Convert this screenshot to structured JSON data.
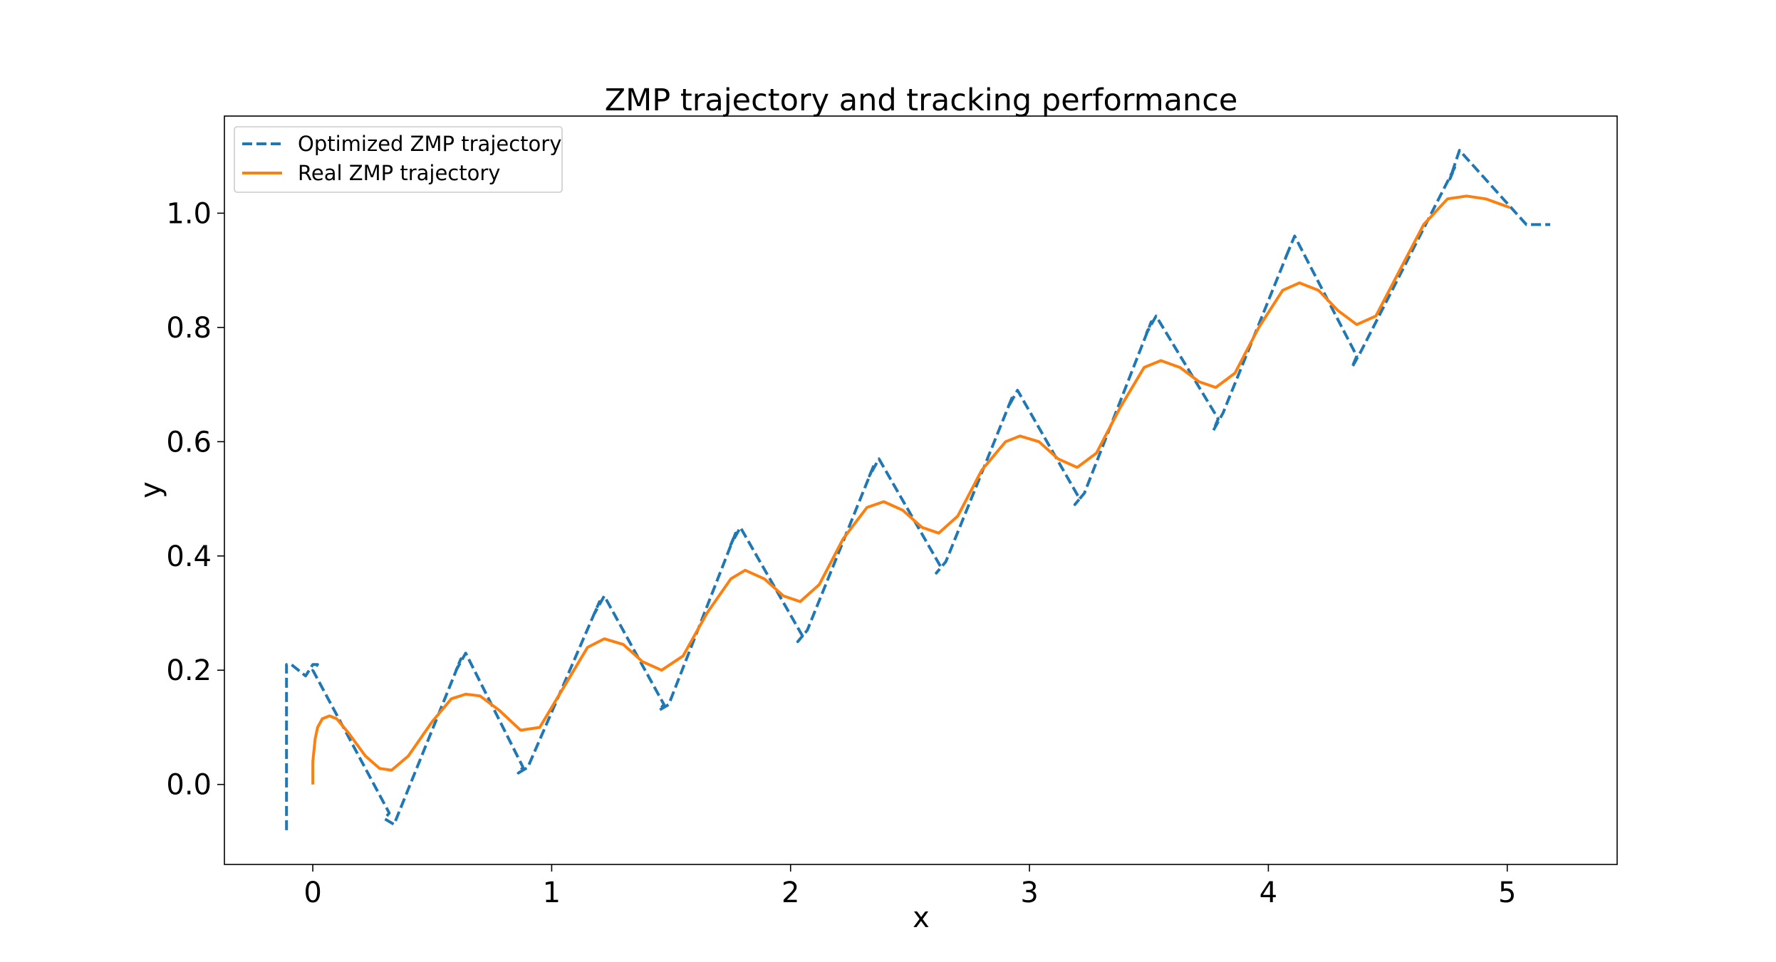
{
  "chart_data": {
    "type": "line",
    "title": "ZMP trajectory and tracking performance",
    "xlabel": "x",
    "ylabel": "y",
    "xlim": [
      -0.37,
      5.46
    ],
    "ylim": [
      -0.14,
      1.17
    ],
    "xticks": [
      0,
      1,
      2,
      3,
      4,
      5
    ],
    "xtick_labels": [
      "0",
      "1",
      "2",
      "3",
      "4",
      "5"
    ],
    "yticks": [
      0.0,
      0.2,
      0.4,
      0.6,
      0.8,
      1.0
    ],
    "ytick_labels": [
      "0.0",
      "0.2",
      "0.4",
      "0.6",
      "0.8",
      "1.0"
    ],
    "grid": false,
    "legend_position": "upper-left",
    "series": [
      {
        "name": "Optimized ZMP trajectory",
        "color": "#1f77b4",
        "style": "dashed",
        "x": [
          -0.11,
          -0.11,
          -0.09,
          -0.03,
          0.0,
          0.02,
          0.0,
          0.32,
          0.3,
          0.34,
          0.62,
          0.6,
          0.64,
          0.88,
          0.86,
          0.9,
          1.2,
          1.18,
          1.22,
          1.47,
          1.45,
          1.49,
          1.77,
          1.75,
          1.79,
          2.05,
          2.03,
          2.07,
          2.35,
          2.33,
          2.37,
          2.63,
          2.61,
          2.65,
          2.93,
          2.91,
          2.95,
          3.21,
          3.19,
          3.23,
          3.51,
          3.49,
          3.53,
          3.79,
          3.77,
          3.81,
          4.09,
          4.07,
          4.11,
          4.37,
          4.35,
          4.39,
          4.78,
          4.76,
          4.8,
          5.08,
          5.18
        ],
        "y": [
          -0.08,
          0.21,
          0.21,
          0.19,
          0.21,
          0.21,
          0.2,
          -0.05,
          -0.06,
          -0.07,
          0.22,
          0.2,
          0.23,
          0.03,
          0.02,
          0.03,
          0.32,
          0.3,
          0.33,
          0.14,
          0.13,
          0.14,
          0.44,
          0.42,
          0.45,
          0.26,
          0.25,
          0.27,
          0.56,
          0.54,
          0.57,
          0.38,
          0.37,
          0.39,
          0.68,
          0.66,
          0.69,
          0.5,
          0.49,
          0.51,
          0.81,
          0.79,
          0.82,
          0.64,
          0.62,
          0.65,
          0.94,
          0.92,
          0.96,
          0.75,
          0.73,
          0.76,
          1.08,
          1.06,
          1.11,
          0.98,
          0.98
        ]
      },
      {
        "name": "Real ZMP trajectory",
        "color": "#ff7f0e",
        "style": "solid",
        "x": [
          0.0,
          0.0,
          0.01,
          0.02,
          0.04,
          0.07,
          0.1,
          0.15,
          0.22,
          0.28,
          0.33,
          0.4,
          0.5,
          0.58,
          0.64,
          0.7,
          0.78,
          0.87,
          0.95,
          1.05,
          1.15,
          1.22,
          1.3,
          1.38,
          1.46,
          1.55,
          1.65,
          1.75,
          1.81,
          1.89,
          1.97,
          2.04,
          2.12,
          2.22,
          2.32,
          2.39,
          2.47,
          2.55,
          2.62,
          2.7,
          2.8,
          2.9,
          2.96,
          3.04,
          3.12,
          3.2,
          3.28,
          3.38,
          3.48,
          3.55,
          3.63,
          3.71,
          3.78,
          3.86,
          3.96,
          4.06,
          4.13,
          4.21,
          4.29,
          4.37,
          4.45,
          4.55,
          4.65,
          4.75,
          4.83,
          4.91,
          5.01
        ],
        "y": [
          0.0,
          0.04,
          0.08,
          0.1,
          0.115,
          0.12,
          0.115,
          0.09,
          0.05,
          0.028,
          0.025,
          0.05,
          0.11,
          0.15,
          0.158,
          0.155,
          0.13,
          0.095,
          0.1,
          0.17,
          0.24,
          0.255,
          0.245,
          0.215,
          0.2,
          0.225,
          0.3,
          0.36,
          0.375,
          0.36,
          0.33,
          0.32,
          0.35,
          0.43,
          0.485,
          0.495,
          0.48,
          0.45,
          0.44,
          0.47,
          0.55,
          0.6,
          0.61,
          0.6,
          0.57,
          0.555,
          0.58,
          0.66,
          0.73,
          0.742,
          0.73,
          0.705,
          0.695,
          0.72,
          0.8,
          0.865,
          0.878,
          0.865,
          0.83,
          0.805,
          0.82,
          0.9,
          0.98,
          1.025,
          1.03,
          1.025,
          1.01
        ]
      }
    ]
  }
}
